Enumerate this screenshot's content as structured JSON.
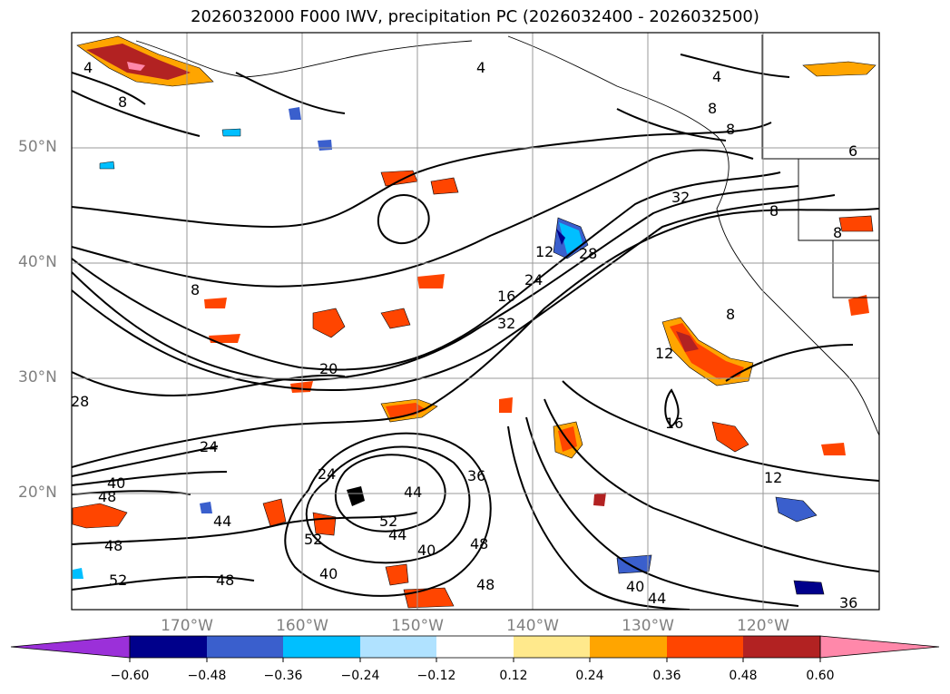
{
  "title": "2026032000 F000 IWV, precipitation PC (2026032400 - 2026032500)",
  "latitude_labels": [
    "50°N",
    "40°N",
    "30°N",
    "20°N"
  ],
  "longitude_labels": [
    "170°W",
    "160°W",
    "150°W",
    "140°W",
    "130°W",
    "120°W"
  ],
  "colorbar": {
    "ticks": [
      "−0.60",
      "−0.48",
      "−0.36",
      "−0.24",
      "−0.12",
      "0.12",
      "0.24",
      "0.36",
      "0.48",
      "0.60"
    ],
    "colors": [
      "#9b30d9",
      "#00008b",
      "#3a5fcd",
      "#00bfff",
      "#b0e2ff",
      "#ffffff",
      "#ffe98c",
      "#ffa500",
      "#ff4500",
      "#b22222",
      "#ff88aa"
    ]
  },
  "contour_labels": [
    "4",
    "8",
    "8",
    "4",
    "4",
    "8",
    "8",
    "6",
    "8",
    "8",
    "12",
    "16",
    "24",
    "28",
    "32",
    "32",
    "8",
    "12",
    "20",
    "16",
    "12",
    "28",
    "24",
    "40",
    "48",
    "24",
    "44",
    "52",
    "48",
    "36",
    "44",
    "52",
    "40",
    "44",
    "48",
    "40",
    "48",
    "40",
    "44",
    "36",
    "48",
    "52"
  ]
}
